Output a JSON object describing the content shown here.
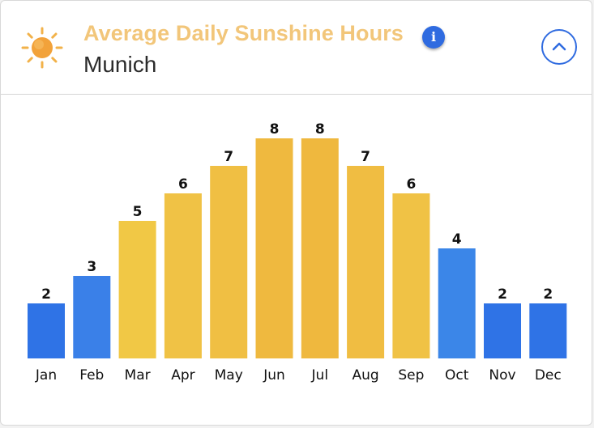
{
  "header": {
    "title": "Average Daily Sunshine Hours",
    "subtitle": "Munich",
    "info_label": "i",
    "icon": "sun-icon",
    "collapse_icon": "chevron-up-icon"
  },
  "colors": {
    "title": "#f2c67a",
    "accent_blue": "#2f6be0",
    "sun_core": "#f2a23a",
    "sun_rays": "#f2b24a"
  },
  "chart_data": {
    "type": "bar",
    "categories": [
      "Jan",
      "Feb",
      "Mar",
      "Apr",
      "May",
      "Jun",
      "Jul",
      "Aug",
      "Sep",
      "Oct",
      "Nov",
      "Dec"
    ],
    "values": [
      2,
      3,
      5,
      6,
      7,
      8,
      8,
      7,
      6,
      4,
      2,
      2
    ],
    "data_labels": [
      "2",
      "3",
      "5",
      "6",
      "7",
      "8",
      "8",
      "7",
      "6",
      "4",
      "2",
      "2"
    ],
    "colors": [
      "#2f73e6",
      "#3a80e8",
      "#f1c845",
      "#f0c245",
      "#f0bf43",
      "#efb93f",
      "#efb83e",
      "#f0bd42",
      "#f0c245",
      "#3b86e8",
      "#2f73e6",
      "#2f73e6"
    ],
    "ylim": [
      0,
      8
    ],
    "grid": false,
    "legend": "none"
  }
}
